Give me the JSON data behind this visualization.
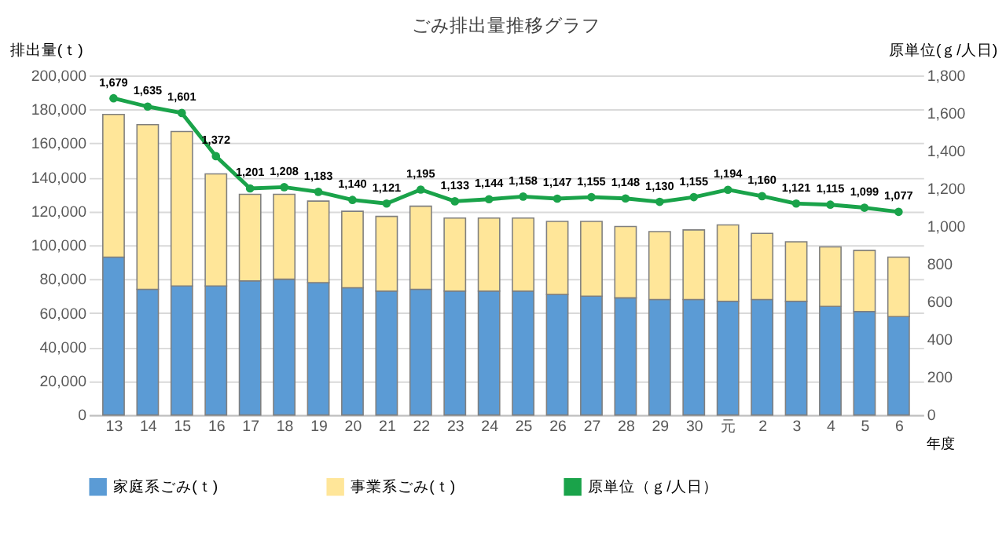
{
  "chart_data": {
    "type": "bar",
    "title": "ごみ排出量推移グラフ",
    "xlabel": "年度",
    "ylabel": "排出量(ｔ)",
    "y2label": "原単位(ｇ/人日)",
    "categories": [
      "13",
      "14",
      "15",
      "16",
      "17",
      "18",
      "19",
      "20",
      "21",
      "22",
      "23",
      "24",
      "25",
      "26",
      "27",
      "28",
      "29",
      "30",
      "元",
      "2",
      "3",
      "4",
      "5",
      "6"
    ],
    "stacked": true,
    "grid": "y",
    "legend": "bottom",
    "marker": "circle",
    "ylim": [
      0,
      200000
    ],
    "yticks": [
      {
        "value": 0,
        "label": "0"
      },
      {
        "value": 20000,
        "label": "20,000"
      },
      {
        "value": 40000,
        "label": "40,000"
      },
      {
        "value": 60000,
        "label": "60,000"
      },
      {
        "value": 80000,
        "label": "80,000"
      },
      {
        "value": 100000,
        "label": "100,000"
      },
      {
        "value": 120000,
        "label": "120,000"
      },
      {
        "value": 140000,
        "label": "140,000"
      },
      {
        "value": 160000,
        "label": "160,000"
      },
      {
        "value": 180000,
        "label": "180,000"
      },
      {
        "value": 200000,
        "label": "200,000"
      }
    ],
    "y2lim": [
      0,
      1800
    ],
    "y2ticks": [
      {
        "value": 0,
        "label": "0"
      },
      {
        "value": 200,
        "label": "200"
      },
      {
        "value": 400,
        "label": "400"
      },
      {
        "value": 600,
        "label": "600"
      },
      {
        "value": 800,
        "label": "800"
      },
      {
        "value": 1000,
        "label": "1,000"
      },
      {
        "value": 1200,
        "label": "1,200"
      },
      {
        "value": 1400,
        "label": "1,400"
      },
      {
        "value": 1600,
        "label": "1,600"
      },
      {
        "value": 1800,
        "label": "1,800"
      }
    ],
    "series": [
      {
        "name": "家庭系ごみ(ｔ)",
        "color": "#5b9bd5",
        "values": [
          93000,
          74000,
          76000,
          76000,
          79000,
          80000,
          78000,
          75000,
          73000,
          74000,
          73000,
          73000,
          73000,
          71000,
          70000,
          69000,
          68000,
          68000,
          67000,
          68000,
          67000,
          64000,
          61000,
          58000
        ]
      },
      {
        "name": "事業系ごみ(ｔ)",
        "color": "#ffe699",
        "values": [
          84000,
          97000,
          91000,
          66000,
          51000,
          50000,
          48000,
          45000,
          44000,
          49000,
          43000,
          43000,
          43000,
          43000,
          44000,
          42000,
          40000,
          41000,
          45000,
          39000,
          35000,
          35000,
          36000,
          35000
        ]
      },
      {
        "name": "原単位（ｇ/人日）",
        "type": "line",
        "axis": "y2",
        "color": "#1aa34a",
        "values": [
          1679,
          1635,
          1601,
          1372,
          1201,
          1208,
          1183,
          1140,
          1121,
          1195,
          1133,
          1144,
          1158,
          1147,
          1155,
          1148,
          1130,
          1155,
          1194,
          1160,
          1121,
          1115,
          1099,
          1077
        ],
        "value_labels": [
          "1,679",
          "1,635",
          "1,601",
          "1,372",
          "1,201",
          "1,208",
          "1,183",
          "1,140",
          "1,121",
          "1,195",
          "1,133",
          "1,144",
          "1,158",
          "1,147",
          "1,155",
          "1,148",
          "1,130",
          "1,155",
          "1,194",
          "1,160",
          "1,121",
          "1,115",
          "1,099",
          "1,077"
        ]
      }
    ]
  }
}
